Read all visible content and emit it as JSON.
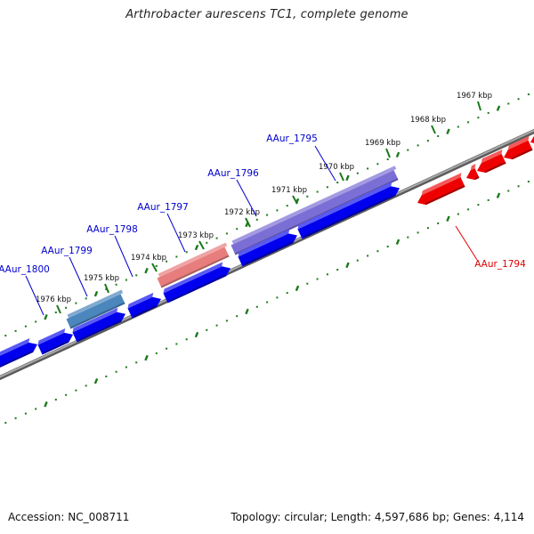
{
  "title": "Arthrobacter aurescens TC1, complete genome",
  "footer": {
    "accession": "Accession: NC_008711",
    "summary": "Topology: circular; Length: 4,597,686 bp; Genes: 4,114"
  },
  "scale_labels": [
    "1967 kbp",
    "1968 kbp",
    "1969 kbp",
    "1970 kbp",
    "1971 kbp",
    "1972 kbp",
    "1973 kbp",
    "1974 kbp",
    "1975 kbp",
    "1976 kbp"
  ],
  "gene_labels": [
    {
      "text": "AAur_1795",
      "color": "#0000cc"
    },
    {
      "text": "AAur_1796",
      "color": "#0000cc"
    },
    {
      "text": "AAur_1797",
      "color": "#0000cc"
    },
    {
      "text": "AAur_1798",
      "color": "#0000cc"
    },
    {
      "text": "AAur_1799",
      "color": "#0000cc"
    },
    {
      "text": "AAur_1800",
      "color": "#0000cc"
    },
    {
      "text": "AAur_1794",
      "color": "#dd0000"
    }
  ],
  "colors": {
    "forward_gene": "#0000ee",
    "reverse_gene": "#ee0000",
    "backbone": "#8a8a8a",
    "scale_tick": "#1a7a1a",
    "highlight_1795_1796": "#7b6fd6",
    "highlight_1797": "#e87d7d",
    "highlight_1799": "#4b86bd"
  }
}
